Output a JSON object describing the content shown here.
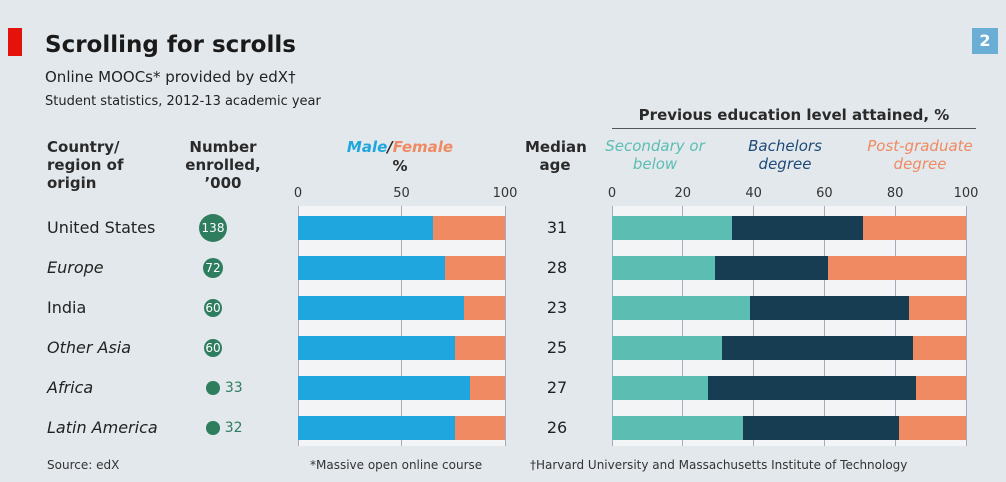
{
  "header": {
    "title": "Scrolling for scrolls",
    "subtitle": "Online MOOCs* provided by edX†",
    "note": "Student statistics, 2012-13 academic year",
    "badge": "2"
  },
  "columns": {
    "country": "Country/ region of origin",
    "enrolled": "Number enrolled, ’000",
    "age": "Median age"
  },
  "rows": [
    {
      "country": "United States",
      "style": "normal",
      "enrolled": 138,
      "age": 31
    },
    {
      "country": "Europe",
      "style": "italic",
      "enrolled": 72,
      "age": 28
    },
    {
      "country": "India",
      "style": "normal",
      "enrolled": 60,
      "age": 23
    },
    {
      "country": "Other Asia",
      "style": "italic",
      "enrolled": 60,
      "age": 25
    },
    {
      "country": "Africa",
      "style": "italic",
      "enrolled": 33,
      "age": 27
    },
    {
      "country": "Latin America",
      "style": "italic",
      "enrolled": 32,
      "age": 26
    }
  ],
  "chart_data": [
    {
      "type": "bar",
      "orientation": "horizontal",
      "stacked": true,
      "unit": "%",
      "categories": [
        "United States",
        "Europe",
        "India",
        "Other Asia",
        "Africa",
        "Latin America"
      ],
      "series": [
        {
          "name": "Male",
          "color": "#1fa6df",
          "values": [
            65,
            71,
            80,
            76,
            83,
            76
          ]
        },
        {
          "name": "Female",
          "color": "#ef8a62",
          "values": [
            35,
            29,
            20,
            24,
            17,
            24
          ]
        }
      ],
      "xlim": [
        0,
        100
      ],
      "xticks": [
        0,
        50,
        100
      ],
      "grid": true
    },
    {
      "type": "bar",
      "orientation": "horizontal",
      "stacked": true,
      "title": "Previous education level attained, %",
      "categories": [
        "United States",
        "Europe",
        "India",
        "Other Asia",
        "Africa",
        "Latin America"
      ],
      "series": [
        {
          "name": "Secondary or below",
          "color": "#5cbdb3",
          "values": [
            34,
            29,
            39,
            31,
            27,
            37
          ]
        },
        {
          "name": "Bachelors degree",
          "color": "#173d52",
          "values": [
            37,
            32,
            45,
            54,
            59,
            44
          ]
        },
        {
          "name": "Post-graduate degree",
          "color": "#ef8a62",
          "values": [
            29,
            39,
            16,
            15,
            14,
            19
          ]
        }
      ],
      "xlim": [
        0,
        100
      ],
      "xticks": [
        0,
        20,
        40,
        60,
        80,
        100
      ],
      "grid": true
    }
  ],
  "footer": {
    "source": "Source: edX",
    "footnote1": "*Massive open online course",
    "footnote2": "†Harvard University and Massachusetts Institute of Technology"
  }
}
